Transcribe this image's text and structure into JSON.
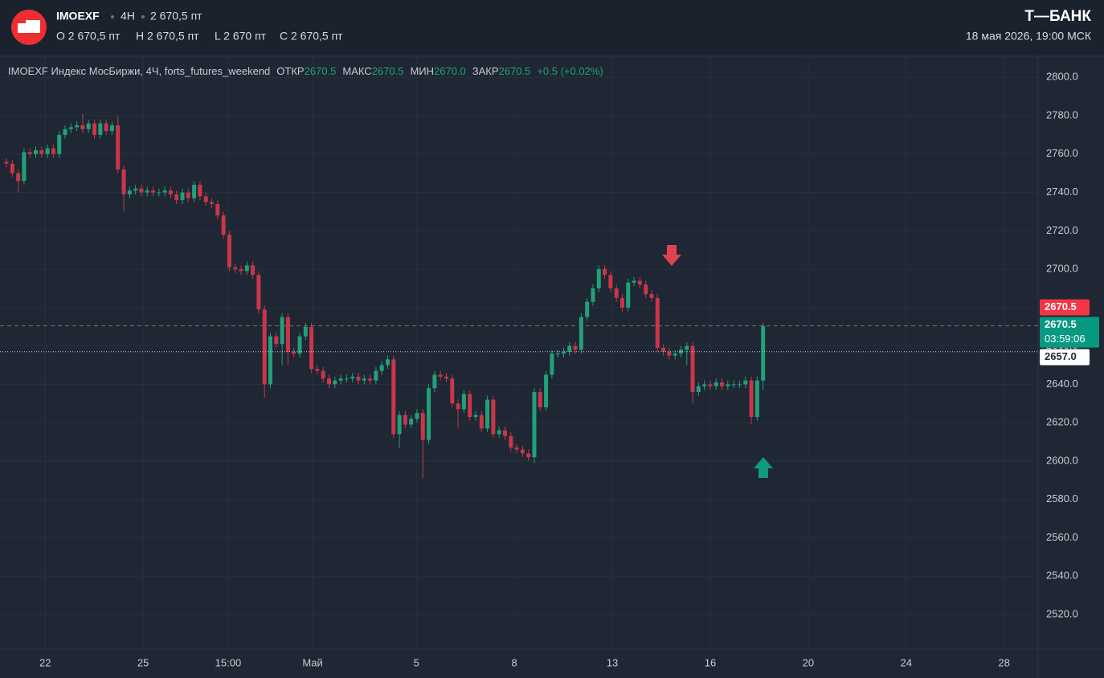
{
  "header": {
    "ticker": "IMOEXF",
    "interval": "4H",
    "price": "2 670,5 пт",
    "ohlc": [
      "O 2 670,5 пт",
      "H 2 670,5 пт",
      "L 2 670 пт",
      "C 2 670,5 пт"
    ],
    "brand": "Т—БАНК",
    "datetime": "18 мая 2026, 19:00 МСК"
  },
  "chart_data": {
    "type": "candlestick",
    "legend": {
      "name": "IMOEXF Индекс МосБиржи, 4Ч, forts_futures_weekend",
      "fields": [
        {
          "label": "ОТКР",
          "value": "2670.5"
        },
        {
          "label": "МАКС",
          "value": "2670.5"
        },
        {
          "label": "МИН",
          "value": "2670.0"
        },
        {
          "label": "ЗАКР",
          "value": "2670.5"
        }
      ],
      "change": "+0.5 (+0.02%)"
    },
    "open": [
      2756,
      2755,
      2750,
      2746,
      2761,
      2760,
      2762,
      2760,
      2763,
      2760,
      2770,
      2773,
      2774,
      2775,
      2773,
      2776,
      2770,
      2776,
      2772,
      2775,
      2752,
      2739,
      2741,
      2742,
      2740,
      2741,
      2740,
      2740,
      2741,
      2739,
      2736,
      2740,
      2737,
      2744,
      2738,
      2735,
      2734,
      2728,
      2718,
      2701,
      2700,
      2699,
      2702,
      2697,
      2679,
      2640,
      2665,
      2661,
      2675,
      2657,
      2656,
      2665,
      2670,
      2648,
      2647,
      2643,
      2640,
      2642,
      2643,
      2643,
      2644,
      2642,
      2643,
      2642,
      2647,
      2650,
      2653,
      2614,
      2624,
      2619,
      2622,
      2625,
      2611,
      2638,
      2645,
      2644,
      2643,
      2630,
      2627,
      2635,
      2623,
      2624,
      2617,
      2632,
      2614,
      2616,
      2613,
      2607,
      2606,
      2604,
      2602,
      2636,
      2628,
      2645,
      2656,
      2656,
      2657,
      2660,
      2658,
      2675,
      2683,
      2690,
      2700,
      2697,
      2690,
      2685,
      2680,
      2693,
      2694,
      2692,
      2687,
      2685,
      2659,
      2657,
      2655,
      2656,
      2658,
      2660,
      2636,
      2639,
      2640,
      2639,
      2641,
      2639,
      2640,
      2640,
      2640,
      2642,
      2623,
      2642
    ],
    "high": [
      2758,
      2757,
      2752,
      2763,
      2763,
      2764,
      2764,
      2765,
      2765,
      2772,
      2775,
      2776,
      2777,
      2781,
      2778,
      2778,
      2778,
      2778,
      2777,
      2780,
      2754,
      2743,
      2744,
      2744,
      2743,
      2743,
      2742,
      2743,
      2743,
      2741,
      2742,
      2742,
      2746,
      2746,
      2740,
      2737,
      2736,
      2730,
      2720,
      2703,
      2702,
      2704,
      2704,
      2699,
      2681,
      2667,
      2667,
      2677,
      2677,
      2659,
      2667,
      2672,
      2672,
      2650,
      2649,
      2645,
      2644,
      2645,
      2645,
      2646,
      2646,
      2645,
      2645,
      2649,
      2652,
      2655,
      2655,
      2626,
      2626,
      2624,
      2627,
      2627,
      2640,
      2647,
      2647,
      2646,
      2645,
      2632,
      2637,
      2637,
      2626,
      2626,
      2634,
      2634,
      2618,
      2618,
      2615,
      2609,
      2608,
      2606,
      2638,
      2638,
      2647,
      2658,
      2658,
      2659,
      2662,
      2662,
      2677,
      2685,
      2692,
      2702,
      2702,
      2699,
      2692,
      2687,
      2695,
      2696,
      2696,
      2694,
      2689,
      2687,
      2661,
      2659,
      2658,
      2660,
      2662,
      2662,
      2641,
      2642,
      2642,
      2643,
      2643,
      2642,
      2642,
      2642,
      2644,
      2644,
      2644,
      2672
    ],
    "low": [
      2753,
      2748,
      2740,
      2744,
      2758,
      2758,
      2758,
      2758,
      2758,
      2758,
      2768,
      2771,
      2772,
      2771,
      2771,
      2768,
      2768,
      2770,
      2770,
      2750,
      2730,
      2737,
      2739,
      2738,
      2738,
      2738,
      2738,
      2738,
      2737,
      2734,
      2734,
      2735,
      2735,
      2736,
      2733,
      2732,
      2726,
      2716,
      2699,
      2698,
      2697,
      2697,
      2695,
      2677,
      2633,
      2638,
      2659,
      2650,
      2650,
      2654,
      2654,
      2663,
      2646,
      2645,
      2641,
      2638,
      2638,
      2640,
      2641,
      2641,
      2640,
      2640,
      2640,
      2640,
      2645,
      2648,
      2612,
      2607,
      2617,
      2617,
      2620,
      2591,
      2609,
      2636,
      2642,
      2641,
      2628,
      2617,
      2625,
      2621,
      2621,
      2615,
      2615,
      2612,
      2612,
      2611,
      2605,
      2604,
      2602,
      2600,
      2599,
      2626,
      2626,
      2643,
      2654,
      2654,
      2655,
      2656,
      2656,
      2673,
      2681,
      2688,
      2695,
      2688,
      2683,
      2678,
      2678,
      2691,
      2690,
      2685,
      2683,
      2657,
      2655,
      2653,
      2653,
      2654,
      2650,
      2630,
      2634,
      2637,
      2637,
      2637,
      2637,
      2637,
      2638,
      2638,
      2638,
      2619,
      2621,
      2637
    ],
    "close": [
      2755,
      2750,
      2746,
      2761,
      2760,
      2762,
      2760,
      2763,
      2760,
      2770,
      2773,
      2774,
      2775,
      2773,
      2776,
      2770,
      2776,
      2772,
      2775,
      2752,
      2739,
      2741,
      2742,
      2740,
      2741,
      2740,
      2740,
      2741,
      2739,
      2736,
      2740,
      2737,
      2744,
      2738,
      2735,
      2734,
      2728,
      2718,
      2701,
      2700,
      2699,
      2702,
      2697,
      2679,
      2640,
      2665,
      2661,
      2675,
      2657,
      2656,
      2665,
      2670,
      2648,
      2647,
      2643,
      2640,
      2642,
      2643,
      2643,
      2644,
      2642,
      2643,
      2642,
      2647,
      2650,
      2653,
      2614,
      2624,
      2619,
      2622,
      2625,
      2611,
      2638,
      2645,
      2644,
      2643,
      2630,
      2627,
      2635,
      2623,
      2624,
      2617,
      2632,
      2614,
      2616,
      2613,
      2607,
      2606,
      2604,
      2602,
      2636,
      2628,
      2645,
      2656,
      2656,
      2657,
      2660,
      2658,
      2675,
      2683,
      2690,
      2700,
      2697,
      2690,
      2685,
      2680,
      2693,
      2694,
      2692,
      2687,
      2685,
      2659,
      2657,
      2655,
      2656,
      2658,
      2660,
      2636,
      2639,
      2640,
      2639,
      2641,
      2639,
      2640,
      2640,
      2640,
      2642,
      2623,
      2642,
      2670.5
    ],
    "up_color": "#22a07a",
    "down_color": "#c9364b",
    "ylim": [
      2502,
      2811
    ],
    "yticks": [
      {
        "value": 2520,
        "label": "2520.0"
      },
      {
        "value": 2540,
        "label": "2540.0"
      },
      {
        "value": 2560,
        "label": "2560.0"
      },
      {
        "value": 2580,
        "label": "2580.0"
      },
      {
        "value": 2600,
        "label": "2600.0"
      },
      {
        "value": 2620,
        "label": "2620.0"
      },
      {
        "value": 2640,
        "label": "2640.0"
      },
      {
        "value": 2660,
        "label": "2660.0"
      },
      {
        "value": 2680,
        "label": "2680.0"
      },
      {
        "value": 2700,
        "label": "2700.0"
      },
      {
        "value": 2720,
        "label": "2720.0"
      },
      {
        "value": 2740,
        "label": "2740.0"
      },
      {
        "value": 2760,
        "label": "2760.0"
      },
      {
        "value": 2780,
        "label": "2780.0"
      },
      {
        "value": 2800,
        "label": "2800.0"
      }
    ],
    "xlim": [
      -1.1,
      175.9
    ],
    "xticks": [
      {
        "value": 6.6,
        "label": "22"
      },
      {
        "value": 23.3,
        "label": "25"
      },
      {
        "value": 37.8,
        "label": "15:00"
      },
      {
        "value": 52.2,
        "label": "Май"
      },
      {
        "value": 69.9,
        "label": "5"
      },
      {
        "value": 86.6,
        "label": "8"
      },
      {
        "value": 103.3,
        "label": "13"
      },
      {
        "value": 120,
        "label": "16"
      },
      {
        "value": 136.7,
        "label": "20"
      },
      {
        "value": 153.4,
        "label": "24"
      },
      {
        "value": 170.1,
        "label": "28"
      }
    ],
    "grid": true,
    "price_labels": [
      {
        "value": 2670.5,
        "label": "2670.5",
        "color": "#f23645"
      },
      {
        "value": 2670.5,
        "label": "2670.5",
        "sublabel": "03:59:06",
        "color": "#089981",
        "line": "dashed"
      },
      {
        "value": 2657,
        "label": "2657.0",
        "color": "#ffffff",
        "line": "dotted"
      }
    ]
  }
}
